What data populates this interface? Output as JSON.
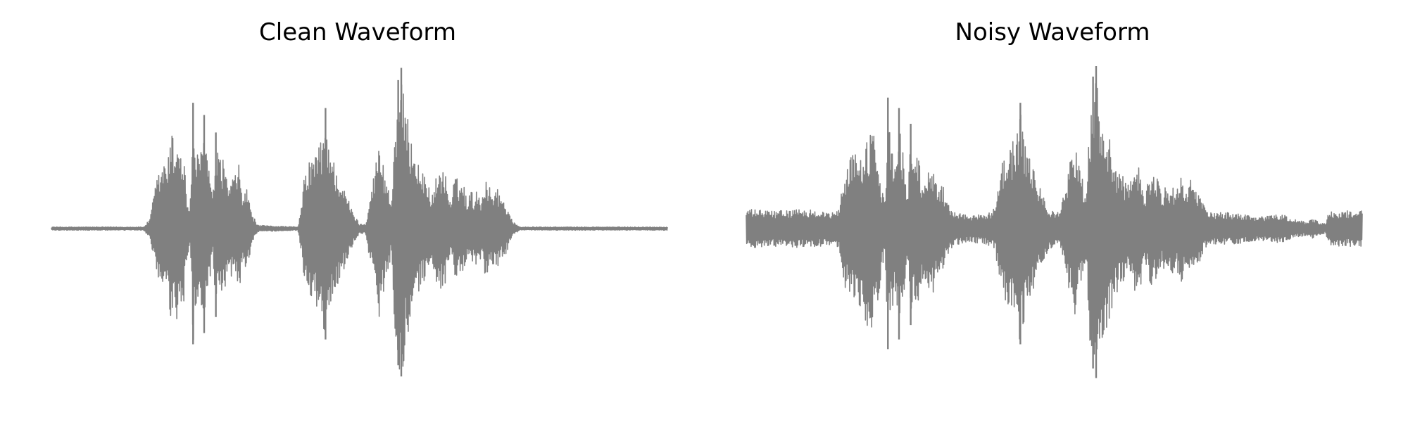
{
  "figure": {
    "waveform_color": "#808080",
    "background_color": "#ffffff"
  },
  "chart_data": [
    {
      "type": "line",
      "title": "Clean Waveform",
      "axes_visible": false,
      "grid": false,
      "xlabel": "",
      "ylabel": "",
      "ylim": [
        -1.0,
        1.0
      ],
      "segments": [
        {
          "start": 0.15,
          "end": 0.355,
          "peak": 0.78
        },
        {
          "start": 0.405,
          "end": 0.52,
          "peak": 0.75
        },
        {
          "start": 0.525,
          "end": 0.78,
          "peak": 1.0
        }
      ],
      "series": [
        {
          "envelope": [
            [
              0.0,
              0.01
            ],
            [
              0.15,
              0.01
            ],
            [
              0.16,
              0.06
            ],
            [
              0.17,
              0.3
            ],
            [
              0.18,
              0.4
            ],
            [
              0.19,
              0.45
            ],
            [
              0.195,
              0.62
            ],
            [
              0.2,
              0.52
            ],
            [
              0.205,
              0.63
            ],
            [
              0.21,
              0.48
            ],
            [
              0.215,
              0.47
            ],
            [
              0.22,
              0.2
            ],
            [
              0.225,
              0.1
            ],
            [
              0.23,
              0.72
            ],
            [
              0.235,
              0.5
            ],
            [
              0.24,
              0.42
            ],
            [
              0.248,
              0.65
            ],
            [
              0.255,
              0.42
            ],
            [
              0.262,
              0.18
            ],
            [
              0.267,
              0.55
            ],
            [
              0.272,
              0.42
            ],
            [
              0.28,
              0.45
            ],
            [
              0.285,
              0.3
            ],
            [
              0.292,
              0.3
            ],
            [
              0.298,
              0.33
            ],
            [
              0.305,
              0.4
            ],
            [
              0.31,
              0.22
            ],
            [
              0.318,
              0.25
            ],
            [
              0.325,
              0.1
            ],
            [
              0.335,
              0.02
            ],
            [
              0.4,
              0.01
            ],
            [
              0.405,
              0.12
            ],
            [
              0.41,
              0.3
            ],
            [
              0.418,
              0.43
            ],
            [
              0.425,
              0.45
            ],
            [
              0.432,
              0.5
            ],
            [
              0.438,
              0.55
            ],
            [
              0.445,
              0.69
            ],
            [
              0.45,
              0.58
            ],
            [
              0.455,
              0.48
            ],
            [
              0.46,
              0.4
            ],
            [
              0.47,
              0.3
            ],
            [
              0.48,
              0.2
            ],
            [
              0.49,
              0.1
            ],
            [
              0.5,
              0.03
            ],
            [
              0.51,
              0.03
            ],
            [
              0.518,
              0.22
            ],
            [
              0.525,
              0.37
            ],
            [
              0.532,
              0.55
            ],
            [
              0.538,
              0.42
            ],
            [
              0.545,
              0.3
            ],
            [
              0.552,
              0.15
            ],
            [
              0.558,
              0.7
            ],
            [
              0.563,
              0.85
            ],
            [
              0.568,
              0.92
            ],
            [
              0.573,
              0.8
            ],
            [
              0.58,
              0.65
            ],
            [
              0.59,
              0.5
            ],
            [
              0.6,
              0.35
            ],
            [
              0.61,
              0.32
            ],
            [
              0.618,
              0.2
            ],
            [
              0.625,
              0.33
            ],
            [
              0.632,
              0.38
            ],
            [
              0.64,
              0.34
            ],
            [
              0.648,
              0.15
            ],
            [
              0.655,
              0.33
            ],
            [
              0.662,
              0.29
            ],
            [
              0.668,
              0.3
            ],
            [
              0.675,
              0.18
            ],
            [
              0.68,
              0.25
            ],
            [
              0.686,
              0.2
            ],
            [
              0.692,
              0.25
            ],
            [
              0.698,
              0.18
            ],
            [
              0.705,
              0.33
            ],
            [
              0.712,
              0.25
            ],
            [
              0.718,
              0.22
            ],
            [
              0.722,
              0.3
            ],
            [
              0.728,
              0.2
            ],
            [
              0.735,
              0.18
            ],
            [
              0.742,
              0.12
            ],
            [
              0.75,
              0.04
            ],
            [
              0.76,
              0.01
            ],
            [
              1.0,
              0.01
            ]
          ]
        }
      ]
    },
    {
      "type": "line",
      "title": "Noisy Waveform",
      "axes_visible": false,
      "grid": false,
      "xlabel": "",
      "ylabel": "",
      "ylim": [
        -1.0,
        1.0
      ],
      "series": [
        {
          "envelope": [
            [
              0.0,
              0.12
            ],
            [
              0.05,
              0.11
            ],
            [
              0.1,
              0.12
            ],
            [
              0.14,
              0.1
            ],
            [
              0.15,
              0.12
            ],
            [
              0.16,
              0.36
            ],
            [
              0.17,
              0.45
            ],
            [
              0.18,
              0.48
            ],
            [
              0.19,
              0.5
            ],
            [
              0.195,
              0.63
            ],
            [
              0.2,
              0.55
            ],
            [
              0.205,
              0.65
            ],
            [
              0.21,
              0.5
            ],
            [
              0.215,
              0.48
            ],
            [
              0.22,
              0.25
            ],
            [
              0.225,
              0.18
            ],
            [
              0.23,
              0.75
            ],
            [
              0.235,
              0.55
            ],
            [
              0.24,
              0.45
            ],
            [
              0.248,
              0.69
            ],
            [
              0.255,
              0.45
            ],
            [
              0.262,
              0.22
            ],
            [
              0.267,
              0.6
            ],
            [
              0.272,
              0.45
            ],
            [
              0.28,
              0.47
            ],
            [
              0.285,
              0.32
            ],
            [
              0.292,
              0.35
            ],
            [
              0.298,
              0.37
            ],
            [
              0.305,
              0.42
            ],
            [
              0.31,
              0.28
            ],
            [
              0.318,
              0.3
            ],
            [
              0.325,
              0.18
            ],
            [
              0.335,
              0.11
            ],
            [
              0.36,
              0.08
            ],
            [
              0.39,
              0.1
            ],
            [
              0.4,
              0.11
            ],
            [
              0.405,
              0.15
            ],
            [
              0.41,
              0.35
            ],
            [
              0.418,
              0.45
            ],
            [
              0.425,
              0.49
            ],
            [
              0.432,
              0.53
            ],
            [
              0.438,
              0.58
            ],
            [
              0.445,
              0.72
            ],
            [
              0.45,
              0.6
            ],
            [
              0.455,
              0.5
            ],
            [
              0.46,
              0.45
            ],
            [
              0.47,
              0.33
            ],
            [
              0.48,
              0.22
            ],
            [
              0.49,
              0.14
            ],
            [
              0.5,
              0.1
            ],
            [
              0.51,
              0.12
            ],
            [
              0.518,
              0.25
            ],
            [
              0.525,
              0.4
            ],
            [
              0.532,
              0.57
            ],
            [
              0.538,
              0.45
            ],
            [
              0.545,
              0.33
            ],
            [
              0.552,
              0.18
            ],
            [
              0.558,
              0.72
            ],
            [
              0.563,
              0.87
            ],
            [
              0.568,
              0.93
            ],
            [
              0.573,
              0.8
            ],
            [
              0.58,
              0.68
            ],
            [
              0.59,
              0.55
            ],
            [
              0.6,
              0.4
            ],
            [
              0.61,
              0.36
            ],
            [
              0.618,
              0.25
            ],
            [
              0.625,
              0.37
            ],
            [
              0.632,
              0.4
            ],
            [
              0.64,
              0.37
            ],
            [
              0.648,
              0.2
            ],
            [
              0.655,
              0.37
            ],
            [
              0.662,
              0.32
            ],
            [
              0.668,
              0.33
            ],
            [
              0.675,
              0.22
            ],
            [
              0.68,
              0.28
            ],
            [
              0.686,
              0.24
            ],
            [
              0.692,
              0.28
            ],
            [
              0.698,
              0.22
            ],
            [
              0.705,
              0.36
            ],
            [
              0.712,
              0.28
            ],
            [
              0.718,
              0.26
            ],
            [
              0.722,
              0.33
            ],
            [
              0.728,
              0.24
            ],
            [
              0.735,
              0.22
            ],
            [
              0.742,
              0.15
            ],
            [
              0.75,
              0.1
            ],
            [
              0.78,
              0.1
            ],
            [
              0.81,
              0.09
            ],
            [
              0.83,
              0.07
            ],
            [
              0.85,
              0.08
            ],
            [
              0.87,
              0.09
            ],
            [
              0.885,
              0.06
            ],
            [
              0.9,
              0.05
            ],
            [
              0.91,
              0.04
            ],
            [
              0.92,
              0.06
            ],
            [
              0.93,
              0.04
            ],
            [
              0.94,
              0.03
            ],
            [
              0.945,
              0.1
            ],
            [
              0.96,
              0.11
            ],
            [
              0.98,
              0.11
            ],
            [
              1.0,
              0.11
            ]
          ]
        }
      ]
    }
  ]
}
